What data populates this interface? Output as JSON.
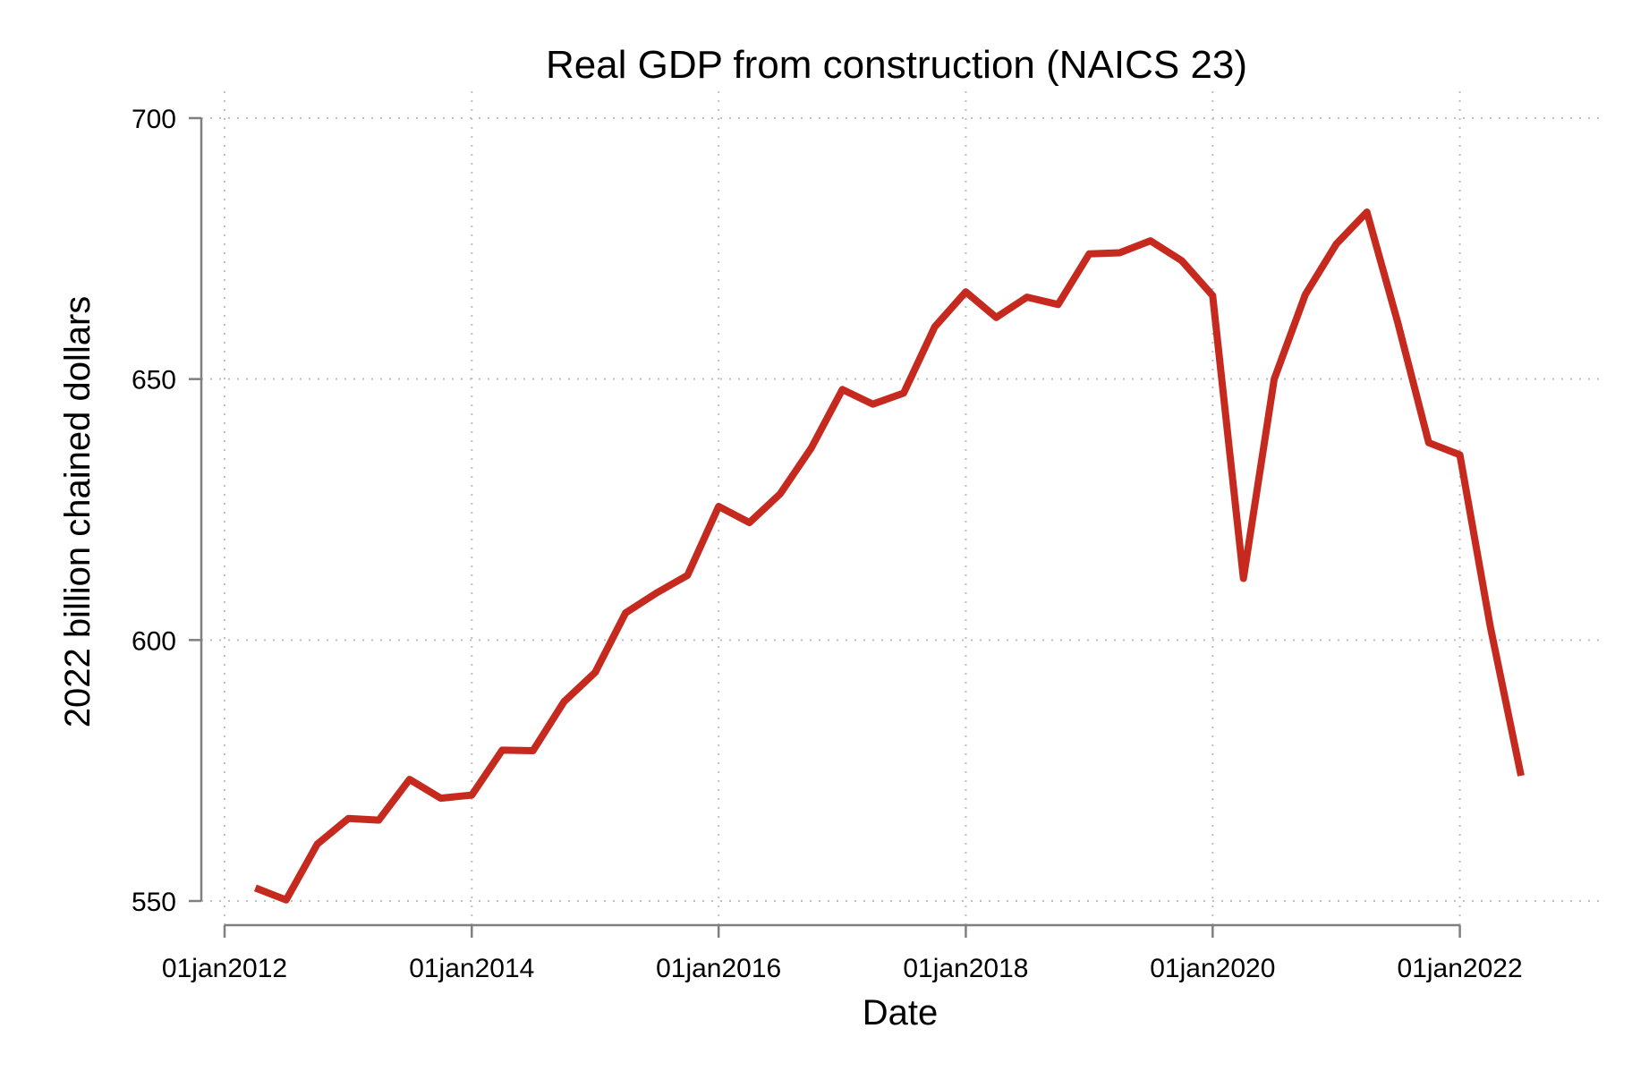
{
  "chart_data": {
    "type": "line",
    "title": "Real GDP from construction (NAICS 23)",
    "xlabel": "Date",
    "ylabel": "2022 billion chained dollars",
    "ylim": [
      550,
      700
    ],
    "xlim": [
      "2012-01-01",
      "2022-07-01"
    ],
    "y_ticks": [
      550,
      600,
      650,
      700
    ],
    "y_tick_labels": [
      "550",
      "600",
      "650",
      "700"
    ],
    "x_ticks": [
      "2012-01-01",
      "2014-01-01",
      "2016-01-01",
      "2018-01-01",
      "2020-01-01",
      "2022-01-01"
    ],
    "x_tick_labels": [
      "01jan2012",
      "01jan2014",
      "01jan2016",
      "01jan2018",
      "01jan2020",
      "01jan2022"
    ],
    "grid": true,
    "line_color": "#c62a1f",
    "series": [
      {
        "x": [
          "2012-04-01",
          "2012-07-01",
          "2012-10-01",
          "2013-01-01",
          "2013-04-01",
          "2013-07-01",
          "2013-10-01",
          "2014-01-01",
          "2014-04-01",
          "2014-07-01",
          "2014-10-01",
          "2015-01-01",
          "2015-04-01",
          "2015-07-01",
          "2015-10-01",
          "2016-01-01",
          "2016-04-01",
          "2016-07-01",
          "2016-10-01",
          "2017-01-01",
          "2017-04-01",
          "2017-07-01",
          "2017-10-01",
          "2018-01-01",
          "2018-04-01",
          "2018-07-01",
          "2018-10-01",
          "2019-01-01",
          "2019-04-01",
          "2019-07-01",
          "2019-10-01",
          "2020-01-01",
          "2020-04-01",
          "2020-07-01",
          "2020-10-01",
          "2021-01-01",
          "2021-04-01",
          "2021-07-01",
          "2021-10-01",
          "2022-01-01",
          "2022-04-01",
          "2022-07-01"
        ],
        "values": [
          552.5,
          550.2,
          560.9,
          565.8,
          565.5,
          573.3,
          569.7,
          570.3,
          578.9,
          578.8,
          588.2,
          593.8,
          605.2,
          609.0,
          612.4,
          625.6,
          622.5,
          628.0,
          636.8,
          648.0,
          645.2,
          647.3,
          660.0,
          666.7,
          661.8,
          665.7,
          664.3,
          674.0,
          674.2,
          676.5,
          672.7,
          666.0,
          611.8,
          650.0,
          666.2,
          675.9,
          682.0,
          660.9,
          637.8,
          635.5,
          602.6,
          574.0
        ]
      }
    ]
  }
}
